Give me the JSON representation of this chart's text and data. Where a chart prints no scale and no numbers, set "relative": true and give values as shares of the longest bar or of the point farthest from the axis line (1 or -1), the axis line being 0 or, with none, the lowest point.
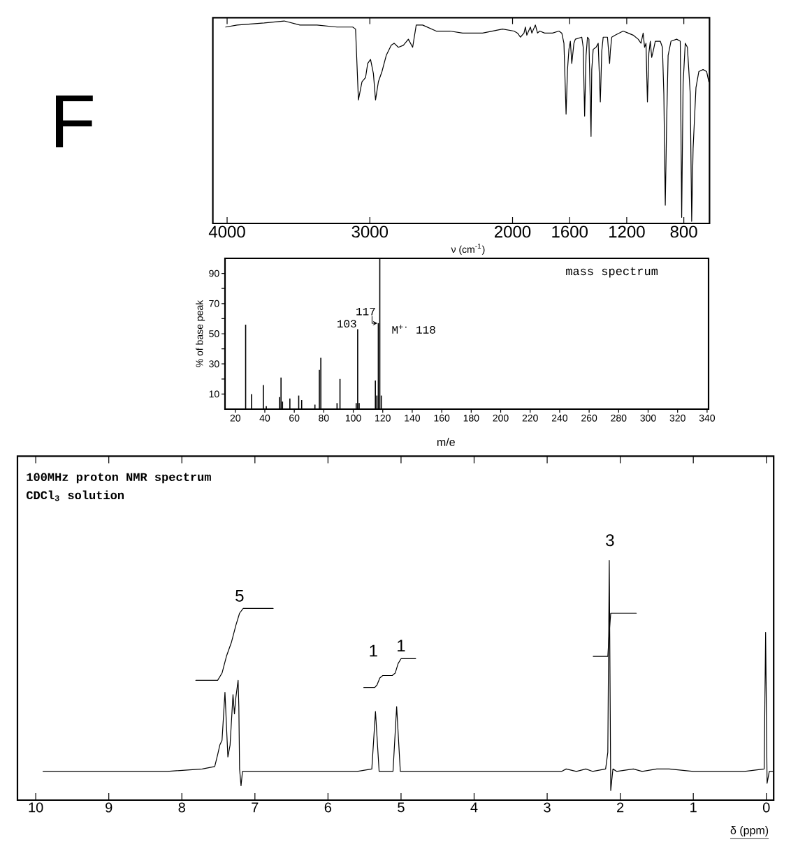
{
  "chart_data": [
    {
      "type": "line",
      "annotations": [
        "F"
      ],
      "xlabel": "ν (cm$^{-1}$)",
      "relative": true,
      "tick_labels": "x",
      "color": "#000000",
      "xlim": [
        4100,
        620
      ],
      "xticks": [
        4000,
        3000,
        2000,
        1600,
        1200,
        800
      ],
      "x": [
        4010,
        3930,
        3740,
        3600,
        3490,
        3370,
        3230,
        3120,
        3100,
        3080,
        3055,
        3030,
        3015,
        2995,
        2975,
        2960,
        2940,
        2915,
        2885,
        2850,
        2830,
        2800,
        2765,
        2730,
        2700,
        2675,
        2630,
        2535,
        2440,
        2350,
        2210,
        2070,
        1990,
        1965,
        1945,
        1920,
        1910,
        1900,
        1875,
        1865,
        1840,
        1825,
        1810,
        1775,
        1720,
        1675,
        1655,
        1640,
        1625,
        1615,
        1605,
        1595,
        1585,
        1570,
        1560,
        1515,
        1505,
        1495,
        1485,
        1475,
        1465,
        1450,
        1445,
        1435,
        1415,
        1400,
        1385,
        1375,
        1365,
        1335,
        1320,
        1315,
        1305,
        1280,
        1225,
        1190,
        1155,
        1120,
        1100,
        1085,
        1075,
        1065,
        1055,
        1045,
        1035,
        1025,
        1015,
        1000,
        965,
        950,
        940,
        930,
        920,
        910,
        890,
        850,
        825,
        815,
        805,
        790,
        775,
        755,
        745,
        735,
        715,
        695,
        665,
        640,
        625
      ],
      "values": [
        0.97,
        0.98,
        0.99,
        1.0,
        0.98,
        0.98,
        0.97,
        0.97,
        0.96,
        0.61,
        0.7,
        0.72,
        0.79,
        0.81,
        0.74,
        0.61,
        0.7,
        0.75,
        0.83,
        0.88,
        0.89,
        0.87,
        0.88,
        0.91,
        0.87,
        0.98,
        0.98,
        0.95,
        0.95,
        0.94,
        0.94,
        0.96,
        0.95,
        0.94,
        0.92,
        0.94,
        0.97,
        0.93,
        0.97,
        0.94,
        0.98,
        0.94,
        0.95,
        0.94,
        0.94,
        0.95,
        0.94,
        0.89,
        0.54,
        0.76,
        0.86,
        0.9,
        0.79,
        0.89,
        0.91,
        0.92,
        0.87,
        0.53,
        0.83,
        0.92,
        0.91,
        0.43,
        0.76,
        0.86,
        0.87,
        0.89,
        0.6,
        0.85,
        0.92,
        0.92,
        0.79,
        0.85,
        0.92,
        0.93,
        0.95,
        0.94,
        0.93,
        0.91,
        0.89,
        0.94,
        0.87,
        0.89,
        0.6,
        0.84,
        0.9,
        0.82,
        0.85,
        0.9,
        0.9,
        0.87,
        0.64,
        0.09,
        0.51,
        0.83,
        0.9,
        0.91,
        0.9,
        0.03,
        0.69,
        0.89,
        0.87,
        0.64,
        0.01,
        0.37,
        0.67,
        0.75,
        0.76,
        0.75,
        0.7
      ]
    },
    {
      "type": "bar",
      "title": "mass spectrum",
      "xlabel": "m/e",
      "ylabel": "% of base peak",
      "color": "#000000",
      "xlim": [
        13,
        341
      ],
      "ylim": [
        0,
        100
      ],
      "xticks": [
        20,
        40,
        60,
        80,
        100,
        120,
        140,
        160,
        180,
        200,
        220,
        240,
        260,
        280,
        300,
        320,
        340
      ],
      "yticks": [
        10,
        {
          "value": 20,
          "label": null
        },
        30,
        {
          "value": 40,
          "label": null
        },
        50,
        {
          "value": 60,
          "label": null
        },
        70,
        {
          "value": 80,
          "label": null
        },
        90
      ],
      "x": [
        27,
        31,
        39,
        41,
        50,
        51,
        52,
        57,
        63,
        65,
        74,
        77,
        78,
        89,
        91,
        102,
        103,
        104,
        115,
        116,
        117,
        118,
        119
      ],
      "values": [
        56,
        10,
        16,
        2,
        8,
        21,
        5,
        7,
        9,
        6,
        3,
        26,
        34,
        4,
        20,
        4,
        53,
        4,
        19,
        9,
        57,
        100,
        9
      ],
      "annotations": [
        {
          "text": "103",
          "x": 103,
          "y": 53
        },
        {
          "text": "117",
          "x": 117,
          "y": 57
        },
        "M$^{+·}$ 118"
      ]
    },
    {
      "type": "line",
      "title": "100MHz proton NMR spectrum",
      "subtitle": "CDCl$_{3}$ solution",
      "xlabel": "δ (ppm)",
      "relative": true,
      "tick_labels": "x",
      "xlim": [
        10.25,
        -0.1
      ],
      "xticks": [
        10,
        9,
        8,
        7,
        6,
        5,
        4,
        3,
        2,
        1,
        0
      ],
      "series": [
        {
          "color": "#000000",
          "x": [
            9.9,
            9.0,
            8.2,
            7.72,
            7.55,
            7.51,
            7.48,
            7.45,
            7.41,
            7.37,
            7.34,
            7.3,
            7.28,
            7.26,
            7.23,
            7.22,
            7.21,
            7.19,
            7.17,
            6.8,
            6.0,
            5.6,
            5.4,
            5.35,
            5.3,
            5.2,
            5.11,
            5.06,
            5.01,
            4.9,
            3.5,
            2.8,
            2.74,
            2.6,
            2.47,
            2.38,
            2.2,
            2.17,
            2.15,
            2.13,
            2.1,
            2.05,
            1.82,
            1.7,
            1.5,
            1.33,
            1.0,
            0.3,
            0.03,
            0.01,
            -0.01,
            -0.04,
            -0.09
          ],
          "values": [
            0.12,
            0.12,
            0.12,
            0.13,
            0.14,
            0.19,
            0.23,
            0.25,
            0.45,
            0.18,
            0.23,
            0.44,
            0.36,
            0.43,
            0.5,
            0.39,
            0.13,
            0.06,
            0.12,
            0.12,
            0.12,
            0.12,
            0.13,
            0.37,
            0.12,
            0.12,
            0.12,
            0.39,
            0.12,
            0.12,
            0.12,
            0.12,
            0.13,
            0.12,
            0.13,
            0.12,
            0.13,
            0.2,
            1.0,
            0.04,
            0.13,
            0.12,
            0.13,
            0.12,
            0.13,
            0.13,
            0.12,
            0.12,
            0.13,
            0.7,
            0.07,
            0.12,
            0.12
          ]
        },
        {
          "color": "#000000",
          "x": [
            7.81,
            7.51,
            7.45,
            7.39,
            7.32,
            7.26,
            7.21,
            7.16,
            6.75,
            6.7,
            5.51,
            5.36,
            5.33,
            5.29,
            5.25,
            5.12,
            5.08,
            5.04,
            5.0,
            4.8,
            4.7,
            2.37,
            2.17,
            2.15,
            2.13,
            1.78
          ],
          "values": [
            0.5,
            0.5,
            0.53,
            0.6,
            0.66,
            0.73,
            0.78,
            0.8,
            0.8,
            null,
            0.47,
            0.47,
            0.48,
            0.51,
            0.52,
            0.52,
            0.53,
            0.57,
            0.59,
            0.59,
            null,
            0.6,
            0.6,
            0.7,
            0.78,
            0.78
          ]
        }
      ],
      "annotations": [
        {
          "text": "5",
          "x": 7.21,
          "y": 0.78
        },
        {
          "text": "1",
          "x": 5.36,
          "y": 0.47
        },
        {
          "text": "1",
          "x": 5.0,
          "y": 0.59
        },
        {
          "text": "3",
          "x": 2.15,
          "y": 1.0
        }
      ]
    }
  ]
}
